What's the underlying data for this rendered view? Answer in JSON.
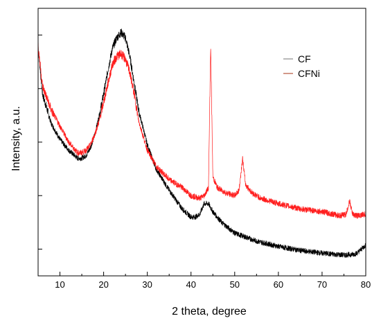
{
  "chart_data": {
    "type": "line",
    "xlabel": "2 theta, degree",
    "ylabel": "Intensity, a.u.",
    "xlim": [
      5,
      80
    ],
    "ylim": [
      0,
      100
    ],
    "x_ticks": [
      10,
      20,
      30,
      40,
      50,
      60,
      70,
      80
    ],
    "x_tick_labels": [
      "10",
      "20",
      "30",
      "40",
      "50",
      "60",
      "70",
      "80"
    ],
    "y_ticks": [
      10,
      30,
      50,
      70,
      90
    ],
    "y_tick_labels_shown": false,
    "grid": false,
    "legend_position": "top-right",
    "series": [
      {
        "name": "CF",
        "color": "#000000",
        "legend_color": "#8a8a8a",
        "x": [
          5,
          6,
          8,
          10,
          12,
          14,
          15,
          16,
          17,
          18,
          19,
          20,
          21,
          22,
          23,
          24,
          25,
          26,
          27,
          28,
          30,
          32,
          35,
          38,
          40,
          41,
          42,
          43,
          44,
          45,
          47,
          50,
          55,
          60,
          65,
          70,
          73,
          75,
          77,
          78,
          79,
          80
        ],
        "y": [
          86,
          68,
          57,
          51,
          47,
          44,
          44,
          45,
          48,
          53,
          60,
          68,
          77,
          85,
          89,
          91,
          89,
          82,
          72,
          62,
          49,
          40,
          32,
          25,
          22,
          22,
          23,
          27,
          27,
          24,
          20,
          16,
          13,
          11,
          9.5,
          8.5,
          8,
          7.8,
          8,
          8.5,
          10,
          11.5
        ]
      },
      {
        "name": "CFNi",
        "color": "#ff1e1e",
        "legend_color": "#b5523a",
        "x": [
          5,
          6,
          8,
          10,
          12,
          14,
          15,
          16,
          17,
          18,
          19,
          20,
          21,
          22,
          23,
          24,
          25,
          26,
          27,
          28,
          30,
          32,
          35,
          38,
          40,
          42,
          43,
          44,
          44.5,
          45,
          46,
          48,
          50,
          51,
          51.8,
          52.5,
          54,
          56,
          60,
          65,
          70,
          74,
          75.5,
          76.3,
          77,
          78,
          80
        ],
        "y": [
          86,
          71,
          62,
          56,
          50,
          46,
          46,
          47,
          49,
          53,
          58,
          65,
          72,
          79,
          82,
          83,
          81,
          76,
          68,
          58,
          47,
          41,
          36,
          33,
          30,
          29,
          30,
          33,
          87,
          37,
          33,
          31,
          30,
          32,
          44,
          34,
          31,
          29,
          27,
          25,
          24,
          22.5,
          23,
          28,
          23,
          22.5,
          23
        ]
      }
    ]
  }
}
